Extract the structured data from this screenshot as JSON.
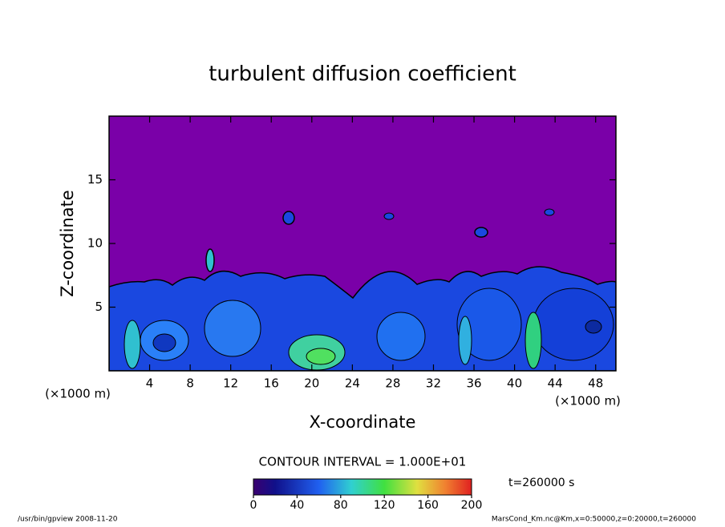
{
  "chart_data": {
    "type": "contour",
    "title": "turbulent diffusion coefficient",
    "x_label": "X-coordinate",
    "y_label": "Z-coordinate",
    "x_unit": "(×1000 m)",
    "y_unit": "(×1000 m)",
    "xlim": [
      0,
      50
    ],
    "xticks": [
      4,
      8,
      12,
      16,
      20,
      24,
      28,
      32,
      36,
      40,
      44,
      48
    ],
    "ylim": [
      0,
      20
    ],
    "yticks": [
      5,
      10,
      15
    ],
    "contour_interval": "CONTOUR INTERVAL = 1.000E+01",
    "colorbar": {
      "lim": [
        0,
        200
      ],
      "ticks": [
        0,
        40,
        80,
        120,
        160,
        200
      ]
    },
    "time_label": "t=260000 s",
    "footer_left": "/usr/bin/gpview  2008-11-20",
    "footer_right": "MarsCond_Km.nc@Km,x=0:50000,z=0:20000,t=260000"
  }
}
